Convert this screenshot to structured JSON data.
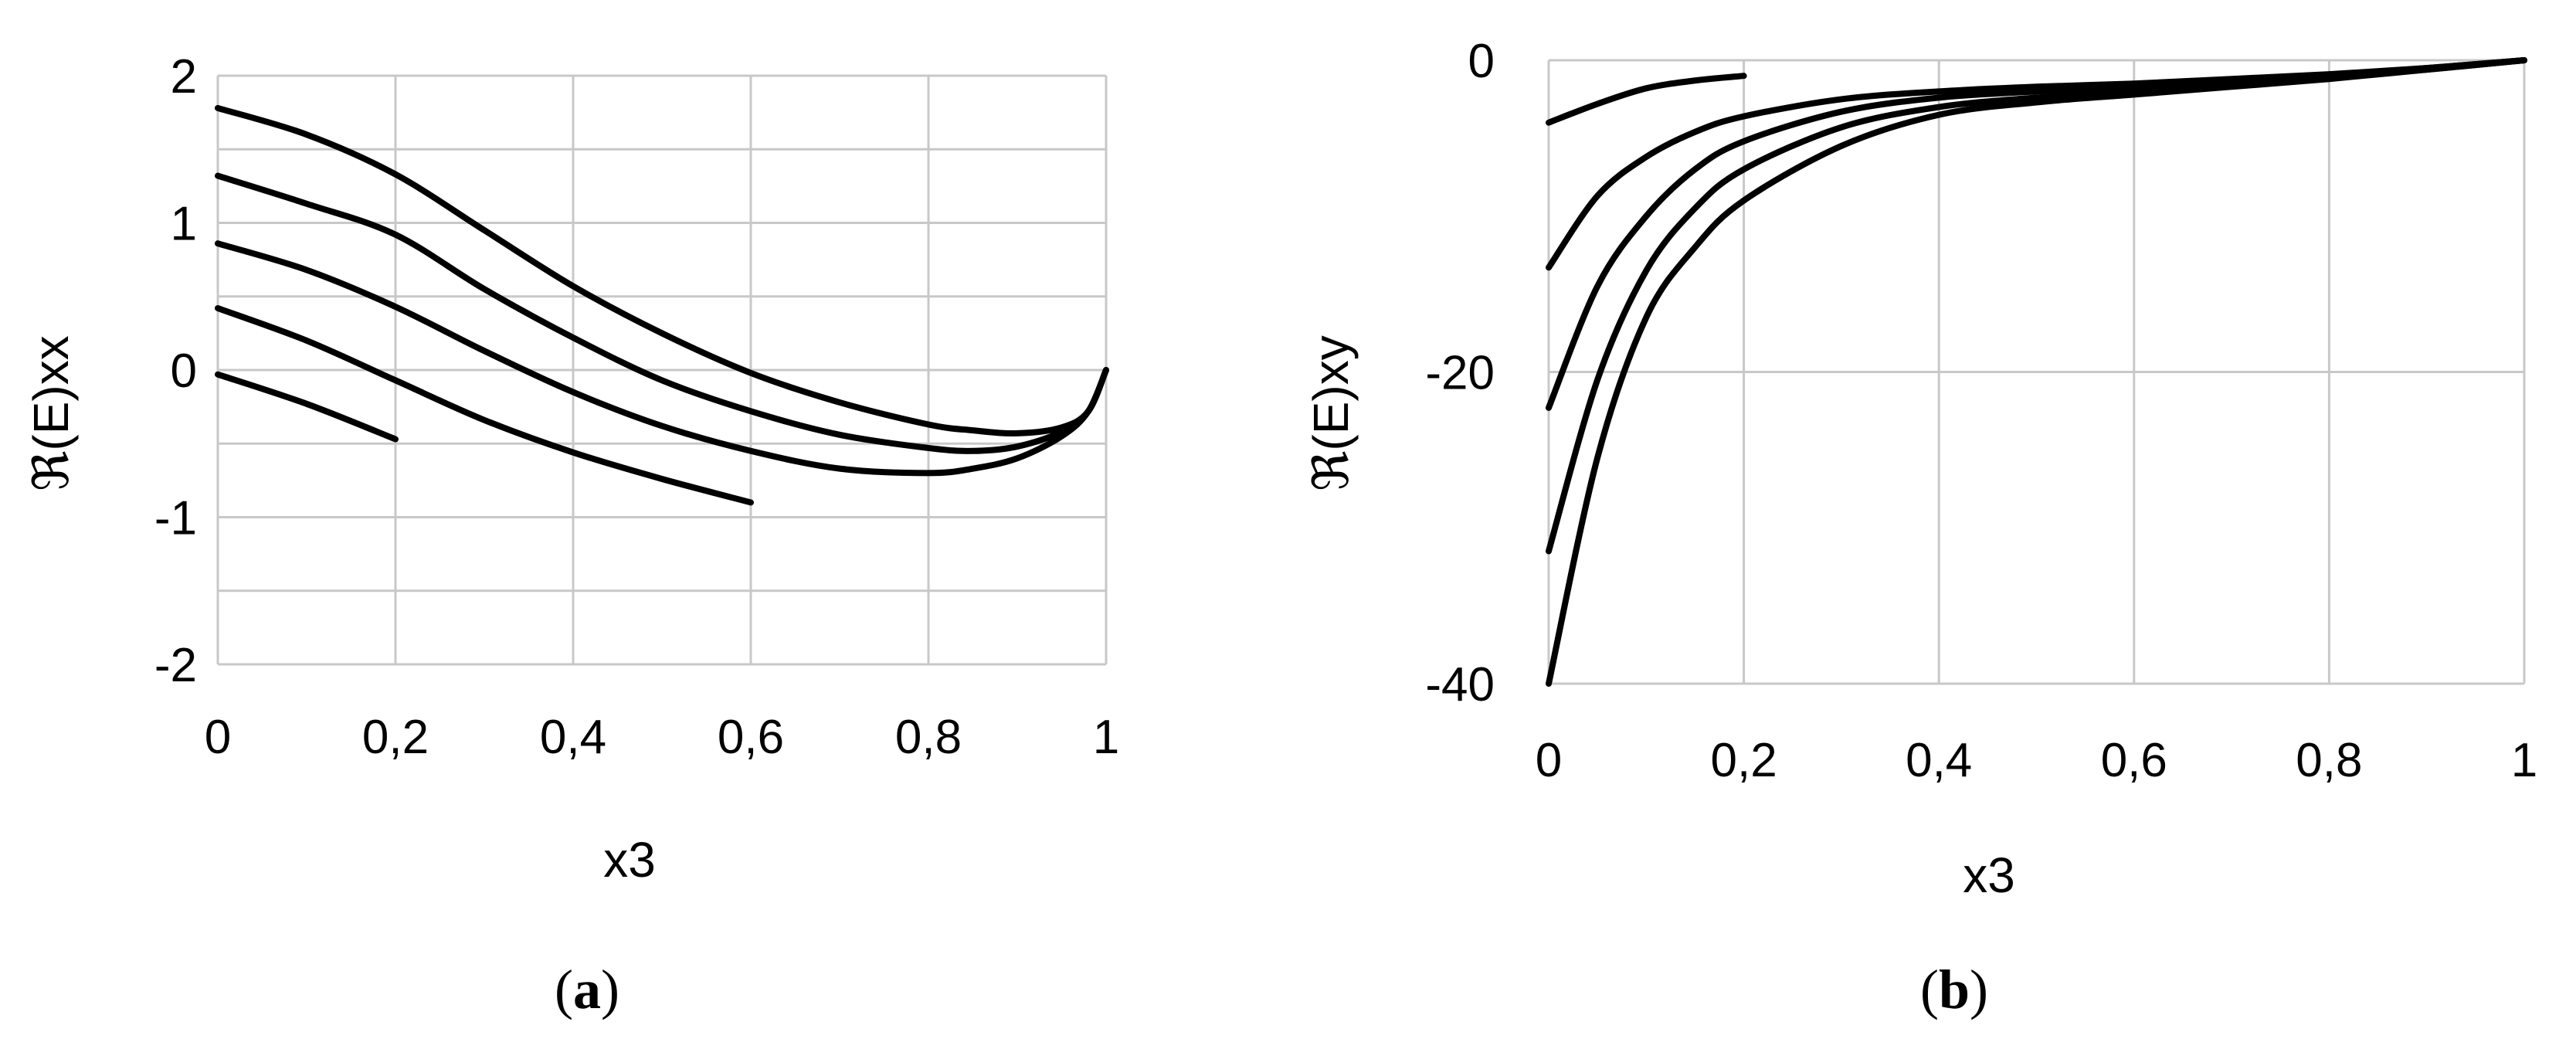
{
  "chart_data": [
    {
      "type": "line",
      "panel_label": "a",
      "xlabel": "x3",
      "ylabel": "ℜ(E)xx",
      "xlim": [
        0,
        1
      ],
      "ylim": [
        -2,
        2
      ],
      "xticks": [
        0,
        0.2,
        0.4,
        0.6,
        0.8,
        1
      ],
      "xtick_labels": [
        "0",
        "0,2",
        "0,4",
        "0,6",
        "0,8",
        "1"
      ],
      "yticks": [
        -2,
        -1,
        0,
        1,
        2
      ],
      "ytick_labels": [
        "-2",
        "-1",
        "0",
        "1",
        "2"
      ],
      "grid": true,
      "series": [
        {
          "x": [
            0,
            0.1,
            0.2,
            0.3,
            0.4,
            0.5,
            0.6,
            0.7,
            0.8,
            0.85,
            0.9,
            0.95,
            0.98,
            1.0
          ],
          "y": [
            1.78,
            1.6,
            1.33,
            0.95,
            0.57,
            0.25,
            -0.02,
            -0.22,
            -0.37,
            -0.41,
            -0.43,
            -0.39,
            -0.28,
            0.0
          ]
        },
        {
          "x": [
            0,
            0.1,
            0.2,
            0.3,
            0.4,
            0.5,
            0.6,
            0.7,
            0.8,
            0.85,
            0.9,
            0.95,
            0.98,
            1.0
          ],
          "y": [
            1.32,
            1.13,
            0.92,
            0.55,
            0.22,
            -0.07,
            -0.28,
            -0.44,
            -0.53,
            -0.55,
            -0.52,
            -0.42,
            -0.28,
            0.0
          ]
        },
        {
          "x": [
            0,
            0.1,
            0.2,
            0.3,
            0.4,
            0.5,
            0.6,
            0.7,
            0.8,
            0.85,
            0.9,
            0.95,
            0.98,
            1.0
          ],
          "y": [
            0.86,
            0.68,
            0.43,
            0.13,
            -0.15,
            -0.38,
            -0.55,
            -0.67,
            -0.7,
            -0.67,
            -0.6,
            -0.45,
            -0.28,
            0.0
          ]
        },
        {
          "x": [
            0,
            0.1,
            0.2,
            0.3,
            0.4,
            0.5,
            0.6
          ],
          "y": [
            0.42,
            0.2,
            -0.07,
            -0.34,
            -0.56,
            -0.74,
            -0.9
          ]
        },
        {
          "x": [
            0,
            0.1,
            0.2
          ],
          "y": [
            -0.03,
            -0.23,
            -0.47
          ]
        }
      ]
    },
    {
      "type": "line",
      "panel_label": "b",
      "xlabel": "x3",
      "ylabel": "ℜ(E)xy",
      "xlim": [
        0,
        1
      ],
      "ylim": [
        -40,
        0
      ],
      "xticks": [
        0,
        0.2,
        0.4,
        0.6,
        0.8,
        1
      ],
      "xtick_labels": [
        "0",
        "0,2",
        "0,4",
        "0,6",
        "0,8",
        "1"
      ],
      "yticks": [
        -40,
        -20,
        0
      ],
      "ytick_labels": [
        "-40",
        "-20",
        "0"
      ],
      "grid": true,
      "series": [
        {
          "x": [
            0,
            0.05,
            0.1,
            0.15,
            0.2
          ],
          "y": [
            -4.0,
            -2.8,
            -1.8,
            -1.3,
            -1.0
          ]
        },
        {
          "x": [
            0,
            0.05,
            0.1,
            0.15,
            0.2,
            0.3,
            0.4,
            0.5,
            0.6,
            0.7,
            0.8,
            0.9,
            1.0
          ],
          "y": [
            -13.3,
            -8.7,
            -6.2,
            -4.6,
            -3.6,
            -2.5,
            -2.0,
            -1.7,
            -1.5,
            -1.2,
            -0.9,
            -0.5,
            0.0
          ]
        },
        {
          "x": [
            0,
            0.05,
            0.1,
            0.15,
            0.2,
            0.3,
            0.4,
            0.5,
            0.6,
            0.7,
            0.8,
            0.9,
            1.0
          ],
          "y": [
            -22.3,
            -14.5,
            -10.0,
            -7.0,
            -5.2,
            -3.3,
            -2.4,
            -2.0,
            -1.7,
            -1.3,
            -1.0,
            -0.5,
            0.0
          ]
        },
        {
          "x": [
            0,
            0.05,
            0.1,
            0.15,
            0.2,
            0.3,
            0.4,
            0.5,
            0.6,
            0.7,
            0.8,
            0.9,
            1.0
          ],
          "y": [
            -31.5,
            -20.5,
            -13.5,
            -9.5,
            -7.0,
            -4.3,
            -3.0,
            -2.4,
            -2.0,
            -1.5,
            -1.1,
            -0.6,
            0.0
          ]
        },
        {
          "x": [
            0,
            0.05,
            0.1,
            0.15,
            0.2,
            0.3,
            0.4,
            0.5,
            0.6,
            0.7,
            0.8,
            0.9,
            1.0
          ],
          "y": [
            -40.0,
            -25.5,
            -16.5,
            -12.0,
            -9.0,
            -5.5,
            -3.5,
            -2.7,
            -2.2,
            -1.7,
            -1.2,
            -0.6,
            0.0
          ]
        }
      ]
    }
  ]
}
